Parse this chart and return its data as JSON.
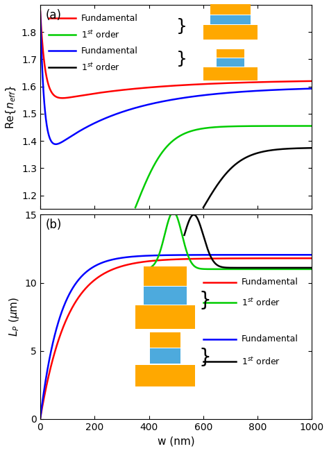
{
  "xlabel": "w (nm)",
  "xlim": [
    0,
    1000
  ],
  "ylim_a": [
    1.15,
    1.9
  ],
  "ylim_b": [
    0,
    15
  ],
  "yticks_a": [
    1.2,
    1.3,
    1.4,
    1.5,
    1.6,
    1.7,
    1.8
  ],
  "yticks_b": [
    0,
    5,
    10,
    15
  ],
  "xticks": [
    0,
    200,
    400,
    600,
    800,
    1000
  ],
  "colors": {
    "red": "#FF0000",
    "green": "#00CC00",
    "blue": "#0000FF",
    "black": "#000000"
  },
  "gold_color": "#FFA800",
  "blue_slot_color": "#4DAADD",
  "background": "#FFFFFF"
}
